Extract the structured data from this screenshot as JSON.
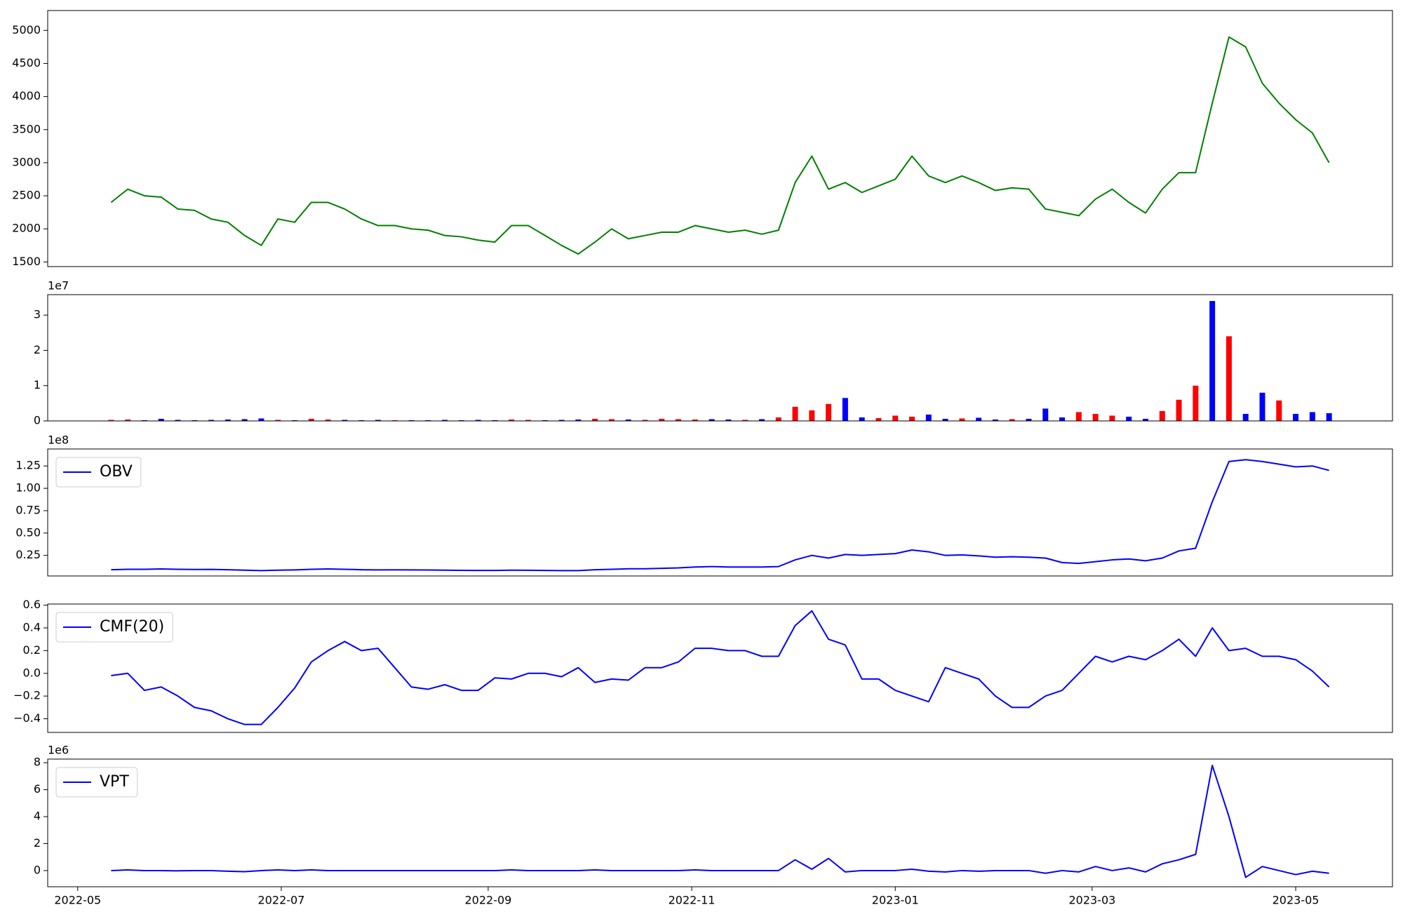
{
  "chart_data": [
    {
      "type": "line",
      "color": "#008000",
      "x": [
        "2022-05-11",
        "2022-05-16",
        "2022-05-21",
        "2022-05-26",
        "2022-05-31",
        "2022-06-05",
        "2022-06-10",
        "2022-06-15",
        "2022-06-20",
        "2022-06-25",
        "2022-06-30",
        "2022-07-05",
        "2022-07-10",
        "2022-07-15",
        "2022-07-20",
        "2022-07-25",
        "2022-07-30",
        "2022-08-04",
        "2022-08-09",
        "2022-08-14",
        "2022-08-19",
        "2022-08-24",
        "2022-08-29",
        "2022-09-03",
        "2022-09-08",
        "2022-09-13",
        "2022-09-18",
        "2022-09-23",
        "2022-09-28",
        "2022-10-03",
        "2022-10-08",
        "2022-10-13",
        "2022-10-18",
        "2022-10-23",
        "2022-10-28",
        "2022-11-02",
        "2022-11-07",
        "2022-11-12",
        "2022-11-17",
        "2022-11-22",
        "2022-11-27",
        "2022-12-02",
        "2022-12-07",
        "2022-12-12",
        "2022-12-17",
        "2022-12-22",
        "2022-12-27",
        "2023-01-01",
        "2023-01-06",
        "2023-01-11",
        "2023-01-16",
        "2023-01-21",
        "2023-01-26",
        "2023-01-31",
        "2023-02-05",
        "2023-02-10",
        "2023-02-15",
        "2023-02-20",
        "2023-02-25",
        "2023-03-02",
        "2023-03-07",
        "2023-03-12",
        "2023-03-17",
        "2023-03-22",
        "2023-03-27",
        "2023-04-01",
        "2023-04-06",
        "2023-04-11",
        "2023-04-16",
        "2023-04-21",
        "2023-04-26",
        "2023-05-01",
        "2023-05-06",
        "2023-05-11"
      ],
      "values": [
        2400,
        2600,
        2500,
        2480,
        2300,
        2280,
        2150,
        2100,
        1900,
        1750,
        2150,
        2100,
        2400,
        2400,
        2300,
        2150,
        2050,
        2050,
        2000,
        1980,
        1900,
        1880,
        1830,
        1800,
        2050,
        2050,
        1900,
        1750,
        1620,
        1800,
        2000,
        1850,
        1900,
        1950,
        1950,
        2050,
        2000,
        1950,
        1980,
        1920,
        1980,
        2700,
        3100,
        2600,
        2700,
        2550,
        2650,
        2750,
        3100,
        2800,
        2700,
        2800,
        2700,
        2580,
        2620,
        2600,
        2300,
        2250,
        2200,
        2450,
        2600,
        2400,
        2240,
        2600,
        2850,
        2850,
        3900,
        4900,
        4750,
        4200,
        3900,
        3650,
        3450,
        3000
      ],
      "xlim": [
        "2022-04-22",
        "2023-05-30"
      ],
      "ylim": [
        1430,
        5300
      ],
      "yticks": [
        1500,
        2000,
        2500,
        3000,
        3500,
        4000,
        4500,
        5000
      ]
    },
    {
      "type": "bar",
      "offset_label": "1e7",
      "x": [
        "2022-05-11",
        "2022-05-16",
        "2022-05-21",
        "2022-05-26",
        "2022-05-31",
        "2022-06-05",
        "2022-06-10",
        "2022-06-15",
        "2022-06-20",
        "2022-06-25",
        "2022-06-30",
        "2022-07-05",
        "2022-07-10",
        "2022-07-15",
        "2022-07-20",
        "2022-07-25",
        "2022-07-30",
        "2022-08-04",
        "2022-08-09",
        "2022-08-14",
        "2022-08-19",
        "2022-08-24",
        "2022-08-29",
        "2022-09-03",
        "2022-09-08",
        "2022-09-13",
        "2022-09-18",
        "2022-09-23",
        "2022-09-28",
        "2022-10-03",
        "2022-10-08",
        "2022-10-13",
        "2022-10-18",
        "2022-10-23",
        "2022-10-28",
        "2022-11-02",
        "2022-11-07",
        "2022-11-12",
        "2022-11-17",
        "2022-11-22",
        "2022-11-27",
        "2022-12-02",
        "2022-12-07",
        "2022-12-12",
        "2022-12-17",
        "2022-12-22",
        "2022-12-27",
        "2023-01-01",
        "2023-01-06",
        "2023-01-11",
        "2023-01-16",
        "2023-01-21",
        "2023-01-26",
        "2023-01-31",
        "2023-02-05",
        "2023-02-10",
        "2023-02-15",
        "2023-02-20",
        "2023-02-25",
        "2023-03-02",
        "2023-03-07",
        "2023-03-12",
        "2023-03-17",
        "2023-03-22",
        "2023-03-27",
        "2023-04-01",
        "2023-04-06",
        "2023-04-11",
        "2023-04-16",
        "2023-04-21",
        "2023-04-26",
        "2023-05-01",
        "2023-05-06",
        "2023-05-11"
      ],
      "values": [
        300000,
        400000,
        200000,
        600000,
        300000,
        200000,
        300000,
        400000,
        500000,
        700000,
        300000,
        200000,
        600000,
        400000,
        300000,
        200000,
        300000,
        200000,
        200000,
        200000,
        300000,
        200000,
        300000,
        200000,
        400000,
        300000,
        200000,
        300000,
        400000,
        600000,
        500000,
        400000,
        300000,
        600000,
        500000,
        400000,
        500000,
        400000,
        300000,
        500000,
        1000000,
        4000000,
        3000000,
        4800000,
        6500000,
        1000000,
        800000,
        1500000,
        1200000,
        1800000,
        600000,
        700000,
        900000,
        400000,
        500000,
        600000,
        3500000,
        1000000,
        2500000,
        2000000,
        1500000,
        1200000,
        600000,
        2800000,
        6000000,
        10000000,
        34000000,
        24000000,
        2000000,
        8000000,
        5800000,
        2000000,
        2500000,
        2200000
      ],
      "colors": [
        "red",
        "red",
        "blue",
        "blue",
        "blue",
        "blue",
        "blue",
        "blue",
        "blue",
        "blue",
        "red",
        "blue",
        "red",
        "red",
        "blue",
        "blue",
        "blue",
        "red",
        "blue",
        "blue",
        "blue",
        "blue",
        "blue",
        "blue",
        "red",
        "red",
        "blue",
        "blue",
        "blue",
        "red",
        "red",
        "blue",
        "red",
        "red",
        "red",
        "red",
        "blue",
        "blue",
        "red",
        "blue",
        "red",
        "red",
        "red",
        "red",
        "blue",
        "blue",
        "red",
        "red",
        "red",
        "blue",
        "blue",
        "red",
        "blue",
        "blue",
        "red",
        "blue",
        "blue",
        "blue",
        "red",
        "red",
        "red",
        "blue",
        "blue",
        "red",
        "red",
        "red",
        "blue",
        "red",
        "blue",
        "blue",
        "red",
        "blue",
        "blue",
        "blue"
      ],
      "xlim": [
        "2022-04-22",
        "2023-05-30"
      ],
      "ylim": [
        0,
        35800000
      ],
      "yticks": [
        0,
        {
          "value": 10000000,
          "label": "1"
        },
        {
          "value": 20000000,
          "label": "2"
        },
        {
          "value": 30000000,
          "label": "3"
        }
      ]
    },
    {
      "type": "line",
      "offset_label": "1e8",
      "legend": "upper left",
      "x": [
        "2022-05-11",
        "2022-05-16",
        "2022-05-21",
        "2022-05-26",
        "2022-05-31",
        "2022-06-05",
        "2022-06-10",
        "2022-06-15",
        "2022-06-20",
        "2022-06-25",
        "2022-06-30",
        "2022-07-05",
        "2022-07-10",
        "2022-07-15",
        "2022-07-20",
        "2022-07-25",
        "2022-07-30",
        "2022-08-04",
        "2022-08-09",
        "2022-08-14",
        "2022-08-19",
        "2022-08-24",
        "2022-08-29",
        "2022-09-03",
        "2022-09-08",
        "2022-09-13",
        "2022-09-18",
        "2022-09-23",
        "2022-09-28",
        "2022-10-03",
        "2022-10-08",
        "2022-10-13",
        "2022-10-18",
        "2022-10-23",
        "2022-10-28",
        "2022-11-02",
        "2022-11-07",
        "2022-11-12",
        "2022-11-17",
        "2022-11-22",
        "2022-11-27",
        "2022-12-02",
        "2022-12-07",
        "2022-12-12",
        "2022-12-17",
        "2022-12-22",
        "2022-12-27",
        "2023-01-01",
        "2023-01-06",
        "2023-01-11",
        "2023-01-16",
        "2023-01-21",
        "2023-01-26",
        "2023-01-31",
        "2023-02-05",
        "2023-02-10",
        "2023-02-15",
        "2023-02-20",
        "2023-02-25",
        "2023-03-02",
        "2023-03-07",
        "2023-03-12",
        "2023-03-17",
        "2023-03-22",
        "2023-03-27",
        "2023-04-01",
        "2023-04-06",
        "2023-04-11",
        "2023-04-16",
        "2023-04-21",
        "2023-04-26",
        "2023-05-01",
        "2023-05-06",
        "2023-05-11"
      ],
      "series": [
        {
          "name": "OBV",
          "color": "blue",
          "values": [
            9000000,
            9500000,
            9500000,
            9800000,
            9500000,
            9300000,
            9400000,
            9000000,
            8500000,
            8000000,
            8500000,
            8800000,
            9500000,
            9800000,
            9500000,
            9000000,
            8800000,
            8900000,
            8800000,
            8700000,
            8500000,
            8300000,
            8200000,
            8200000,
            8500000,
            8400000,
            8200000,
            8000000,
            8000000,
            9000000,
            9500000,
            10000000,
            10000000,
            10500000,
            11000000,
            12000000,
            12500000,
            12000000,
            12000000,
            12000000,
            12500000,
            20000000,
            25000000,
            22000000,
            26000000,
            25000000,
            26000000,
            27000000,
            31000000,
            29000000,
            25000000,
            25500000,
            24500000,
            23000000,
            23500000,
            23000000,
            22000000,
            17000000,
            16000000,
            18000000,
            20000000,
            21000000,
            19000000,
            22000000,
            30000000,
            33000000,
            85000000,
            130000000,
            132000000,
            130000000,
            127000000,
            124000000,
            125000000,
            120000000
          ]
        }
      ],
      "xlim": [
        "2022-04-22",
        "2023-05-30"
      ],
      "ylim": [
        2000000,
        144000000
      ],
      "yticks": [
        {
          "value": 25000000,
          "label": "0.25"
        },
        {
          "value": 50000000,
          "label": "0.50"
        },
        {
          "value": 75000000,
          "label": "0.75"
        },
        {
          "value": 100000000,
          "label": "1.00"
        },
        {
          "value": 125000000,
          "label": "1.25"
        }
      ]
    },
    {
      "type": "line",
      "legend": "upper left",
      "x": [
        "2022-05-11",
        "2022-05-16",
        "2022-05-21",
        "2022-05-26",
        "2022-05-31",
        "2022-06-05",
        "2022-06-10",
        "2022-06-15",
        "2022-06-20",
        "2022-06-25",
        "2022-06-30",
        "2022-07-05",
        "2022-07-10",
        "2022-07-15",
        "2022-07-20",
        "2022-07-25",
        "2022-07-30",
        "2022-08-04",
        "2022-08-09",
        "2022-08-14",
        "2022-08-19",
        "2022-08-24",
        "2022-08-29",
        "2022-09-03",
        "2022-09-08",
        "2022-09-13",
        "2022-09-18",
        "2022-09-23",
        "2022-09-28",
        "2022-10-03",
        "2022-10-08",
        "2022-10-13",
        "2022-10-18",
        "2022-10-23",
        "2022-10-28",
        "2022-11-02",
        "2022-11-07",
        "2022-11-12",
        "2022-11-17",
        "2022-11-22",
        "2022-11-27",
        "2022-12-02",
        "2022-12-07",
        "2022-12-12",
        "2022-12-17",
        "2022-12-22",
        "2022-12-27",
        "2023-01-01",
        "2023-01-06",
        "2023-01-11",
        "2023-01-16",
        "2023-01-21",
        "2023-01-26",
        "2023-01-31",
        "2023-02-05",
        "2023-02-10",
        "2023-02-15",
        "2023-02-20",
        "2023-02-25",
        "2023-03-02",
        "2023-03-07",
        "2023-03-12",
        "2023-03-17",
        "2023-03-22",
        "2023-03-27",
        "2023-04-01",
        "2023-04-06",
        "2023-04-11",
        "2023-04-16",
        "2023-04-21",
        "2023-04-26",
        "2023-05-01",
        "2023-05-06",
        "2023-05-11"
      ],
      "series": [
        {
          "name": "CMF(20)",
          "color": "blue",
          "values": [
            -0.02,
            0.0,
            -0.15,
            -0.12,
            -0.2,
            -0.3,
            -0.33,
            -0.4,
            -0.45,
            -0.45,
            -0.3,
            -0.13,
            0.1,
            0.2,
            0.28,
            0.2,
            0.22,
            0.05,
            -0.12,
            -0.14,
            -0.1,
            -0.15,
            -0.15,
            -0.04,
            -0.05,
            0.0,
            0.0,
            -0.03,
            0.05,
            -0.08,
            -0.05,
            -0.06,
            0.05,
            0.05,
            0.1,
            0.22,
            0.22,
            0.2,
            0.2,
            0.15,
            0.15,
            0.42,
            0.55,
            0.3,
            0.25,
            -0.05,
            -0.05,
            -0.15,
            -0.2,
            -0.25,
            0.05,
            0.0,
            -0.05,
            -0.2,
            -0.3,
            -0.3,
            -0.2,
            -0.15,
            0.0,
            0.15,
            0.1,
            0.15,
            0.12,
            0.2,
            0.3,
            0.15,
            0.4,
            0.2,
            0.22,
            0.15,
            0.15,
            0.12,
            0.02,
            -0.12
          ]
        }
      ],
      "xlim": [
        "2022-04-22",
        "2023-05-30"
      ],
      "ylim": [
        -0.52,
        0.61
      ],
      "yticks": [
        {
          "value": -0.4,
          "label": "−0.4"
        },
        {
          "value": -0.2,
          "label": "−0.2"
        },
        {
          "value": 0,
          "label": "0.0"
        },
        0.2,
        0.4,
        0.6
      ]
    },
    {
      "type": "line",
      "offset_label": "1e6",
      "legend": "upper left",
      "x": [
        "2022-05-11",
        "2022-05-16",
        "2022-05-21",
        "2022-05-26",
        "2022-05-31",
        "2022-06-05",
        "2022-06-10",
        "2022-06-15",
        "2022-06-20",
        "2022-06-25",
        "2022-06-30",
        "2022-07-05",
        "2022-07-10",
        "2022-07-15",
        "2022-07-20",
        "2022-07-25",
        "2022-07-30",
        "2022-08-04",
        "2022-08-09",
        "2022-08-14",
        "2022-08-19",
        "2022-08-24",
        "2022-08-29",
        "2022-09-03",
        "2022-09-08",
        "2022-09-13",
        "2022-09-18",
        "2022-09-23",
        "2022-09-28",
        "2022-10-03",
        "2022-10-08",
        "2022-10-13",
        "2022-10-18",
        "2022-10-23",
        "2022-10-28",
        "2022-11-02",
        "2022-11-07",
        "2022-11-12",
        "2022-11-17",
        "2022-11-22",
        "2022-11-27",
        "2022-12-02",
        "2022-12-07",
        "2022-12-12",
        "2022-12-17",
        "2022-12-22",
        "2022-12-27",
        "2023-01-01",
        "2023-01-06",
        "2023-01-11",
        "2023-01-16",
        "2023-01-21",
        "2023-01-26",
        "2023-01-31",
        "2023-02-05",
        "2023-02-10",
        "2023-02-15",
        "2023-02-20",
        "2023-02-25",
        "2023-03-02",
        "2023-03-07",
        "2023-03-12",
        "2023-03-17",
        "2023-03-22",
        "2023-03-27",
        "2023-04-01",
        "2023-04-06",
        "2023-04-11",
        "2023-04-16",
        "2023-04-21",
        "2023-04-26",
        "2023-05-01",
        "2023-05-06",
        "2023-05-11"
      ],
      "series": [
        {
          "name": "VPT",
          "color": "blue",
          "values": [
            0,
            50000,
            0,
            0,
            -20000,
            0,
            0,
            -50000,
            -80000,
            0,
            50000,
            0,
            50000,
            0,
            0,
            0,
            0,
            0,
            0,
            0,
            0,
            0,
            0,
            0,
            50000,
            0,
            0,
            0,
            0,
            50000,
            0,
            0,
            0,
            0,
            0,
            50000,
            0,
            0,
            0,
            0,
            0,
            800000,
            100000,
            900000,
            -100000,
            0,
            0,
            0,
            100000,
            -50000,
            -100000,
            0,
            -50000,
            0,
            0,
            0,
            -200000,
            0,
            -100000,
            300000,
            0,
            200000,
            -100000,
            500000,
            800000,
            1200000,
            7800000,
            4000000,
            -500000,
            300000,
            0,
            -300000,
            -50000,
            -200000
          ]
        }
      ],
      "xlim": [
        "2022-04-22",
        "2023-05-30"
      ],
      "ylim": [
        -1200000,
        8270000
      ],
      "yticks": [
        0,
        {
          "value": 2000000,
          "label": "2"
        },
        {
          "value": 4000000,
          "label": "4"
        },
        {
          "value": 6000000,
          "label": "6"
        },
        {
          "value": 8000000,
          "label": "8"
        }
      ],
      "xticks": [
        "2022-05",
        "2022-07",
        "2022-09",
        "2022-11",
        "2023-01",
        "2023-03",
        "2023-05"
      ]
    }
  ]
}
